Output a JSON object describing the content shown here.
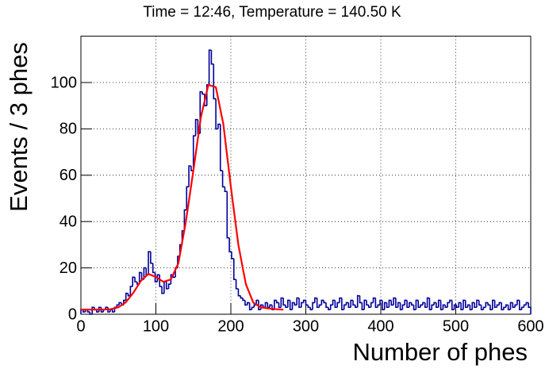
{
  "chart_data": {
    "type": "histogram",
    "title": "Time = 12:46, Temperature = 140.50 K",
    "x_label": "Number of phes",
    "y_label": "Events / 3 phes",
    "color": "#000099",
    "bins": [
      0,
      3,
      6,
      9,
      12,
      15,
      18,
      21,
      24,
      27,
      30,
      33,
      36,
      39,
      42,
      45,
      48,
      51,
      54,
      57,
      60,
      63,
      66,
      69,
      72,
      75,
      78,
      81,
      84,
      87,
      90,
      93,
      96,
      99,
      102,
      105,
      108,
      111,
      114,
      117,
      120,
      123,
      126,
      129,
      132,
      135,
      138,
      141,
      144,
      147,
      150,
      153,
      156,
      159,
      162,
      165,
      168,
      171,
      174,
      177,
      180,
      183,
      186,
      189,
      192,
      195,
      198,
      201,
      204,
      207,
      210,
      213,
      216,
      219,
      222,
      225,
      228,
      231,
      234,
      237,
      240,
      243,
      246,
      249,
      252,
      255,
      258,
      261,
      264,
      267,
      270,
      273,
      276,
      279,
      282,
      285,
      288,
      291,
      294,
      297,
      300,
      303,
      306,
      309,
      312,
      315,
      318,
      321,
      324,
      327,
      330,
      333,
      336,
      339,
      342,
      345,
      348,
      351,
      354,
      357,
      360,
      363,
      366,
      369,
      372,
      375,
      378,
      381,
      384,
      387,
      390,
      393,
      396,
      399,
      402,
      405,
      408,
      411,
      414,
      417,
      420,
      423,
      426,
      429,
      432,
      435,
      438,
      441,
      444,
      447,
      450,
      453,
      456,
      459,
      462,
      465,
      468,
      471,
      474,
      477,
      480,
      483,
      486,
      489,
      492,
      495,
      498,
      501,
      504,
      507,
      510,
      513,
      516,
      519,
      522,
      525,
      528,
      531,
      534,
      537,
      540,
      543,
      546,
      549,
      552,
      555,
      558,
      561,
      564,
      567,
      570,
      573,
      576,
      579,
      582,
      585,
      588,
      591,
      594,
      597,
      600
    ],
    "values": [
      2,
      1,
      2,
      1,
      0,
      3,
      2,
      1,
      3,
      1,
      2,
      3,
      1,
      2,
      1,
      3,
      4,
      5,
      4,
      6,
      9,
      8,
      12,
      16,
      14,
      13,
      18,
      15,
      20,
      17,
      27,
      22,
      18,
      14,
      17,
      12,
      9,
      14,
      11,
      13,
      17,
      16,
      20,
      25,
      30,
      36,
      45,
      55,
      64,
      62,
      77,
      84,
      78,
      96,
      95,
      90,
      99,
      114,
      108,
      93,
      80,
      82,
      62,
      55,
      53,
      33,
      27,
      24,
      15,
      11,
      8,
      7,
      6,
      4,
      5,
      2,
      3,
      4,
      6,
      2,
      4,
      3,
      5,
      3,
      4,
      2,
      6,
      5,
      3,
      7,
      4,
      3,
      6,
      2,
      5,
      4,
      7,
      3,
      5,
      6,
      4,
      3,
      2,
      5,
      7,
      3,
      4,
      6,
      5,
      3,
      2,
      4,
      6,
      3,
      5,
      7,
      2,
      4,
      5,
      3,
      6,
      4,
      3,
      8,
      5,
      2,
      6,
      4,
      3,
      5,
      7,
      3,
      4,
      6,
      2,
      5,
      3,
      6,
      4,
      7,
      3,
      5,
      2,
      4,
      6,
      3,
      5,
      4,
      2,
      6,
      3,
      4,
      5,
      3,
      7,
      2,
      4,
      5,
      3,
      6,
      2,
      4,
      3,
      5,
      6,
      2,
      4,
      3,
      5,
      2,
      6,
      3,
      4,
      2,
      5,
      3,
      6,
      4,
      2,
      3,
      5,
      4,
      2,
      6,
      3,
      4,
      5,
      2,
      3,
      4,
      2,
      5,
      3,
      4,
      6,
      2,
      3,
      4,
      5,
      3
    ],
    "fit": {
      "color": "#ff0000",
      "x": [
        0,
        10,
        20,
        30,
        40,
        50,
        60,
        70,
        80,
        90,
        100,
        110,
        120,
        130,
        140,
        150,
        160,
        170,
        180,
        190,
        200,
        210,
        220,
        230,
        240,
        250,
        260,
        270
      ],
      "values": [
        2,
        2,
        2,
        2,
        2.2,
        3,
        5.2,
        9.3,
        14.4,
        17.4,
        16.1,
        14,
        15,
        22,
        40,
        62,
        85,
        99,
        98,
        82,
        55,
        30,
        13,
        5,
        3,
        2.5,
        2.2,
        2
      ]
    },
    "xlim": [
      0,
      600
    ],
    "xticks": [
      0,
      100,
      200,
      300,
      400,
      500,
      600
    ],
    "ylim": [
      0,
      120
    ],
    "yticks": [
      0,
      20,
      40,
      60,
      80,
      100
    ],
    "grid": true
  }
}
